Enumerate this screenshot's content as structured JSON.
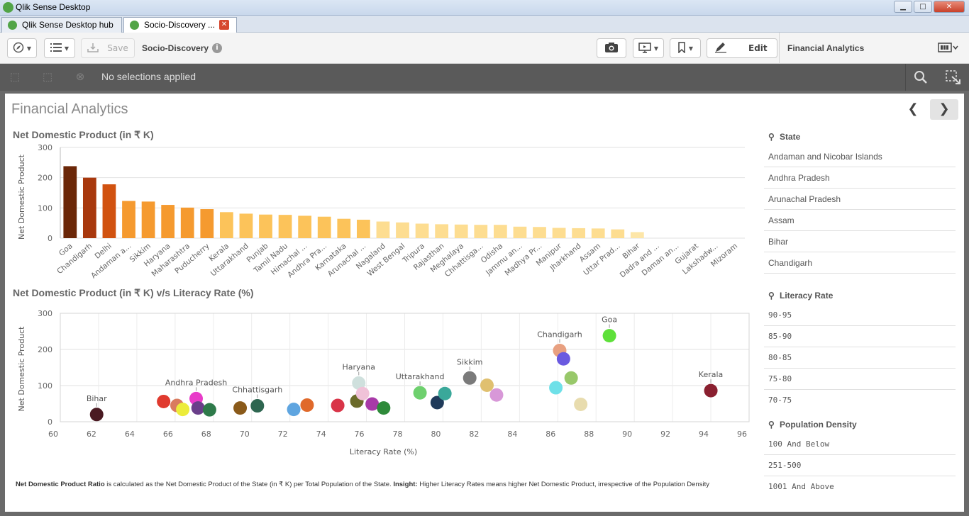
{
  "window": {
    "title": "Qlik Sense Desktop",
    "min": "▁",
    "max": "□",
    "close": "✕"
  },
  "tabs": [
    {
      "label": "Qlik Sense Desktop hub"
    },
    {
      "label": "Socio-Discovery ..."
    }
  ],
  "toolbar": {
    "save_label": "Save",
    "app_name": "Socio-Discovery",
    "edit_label": "Edit",
    "sheet_name": "Financial Analytics"
  },
  "selections": {
    "text": "No selections applied"
  },
  "sheet": {
    "title": "Financial Analytics"
  },
  "charts": {
    "bar_title": "Net Domestic Product (in ₹ K)",
    "scatter_title": "Net Domestic Product (in ₹ K) v/s Literacy Rate (%)"
  },
  "footnote": {
    "bold1": "Net Domestic Product Ratio",
    "text1": " is calculated as the Net Domestic Product of the State (in ₹ K) per Total Population of the State. ",
    "bold2": "Insight:",
    "text2": " Higher Literacy Rates means higher Net Domestic Product, irrespective of the Population Density"
  },
  "filters": {
    "state": {
      "title": "State",
      "items": [
        "Andaman and Nicobar Islands",
        "Andhra Pradesh",
        "Arunachal Pradesh",
        "Assam",
        "Bihar",
        "Chandigarh"
      ]
    },
    "literacy": {
      "title": "Literacy Rate",
      "items": [
        "90-95",
        "85-90",
        "80-85",
        "75-80",
        "70-75"
      ]
    },
    "density": {
      "title": "Population Density",
      "items": [
        "100 And Below",
        "251-500",
        "1001 And Above"
      ]
    }
  },
  "chart_data": [
    {
      "type": "bar",
      "ylabel": "Net Domestic Product",
      "ylim": [
        0,
        300
      ],
      "yticks": [
        0,
        100,
        200,
        300
      ],
      "categories": [
        "Goa",
        "Chandigarh",
        "Delhi",
        "Andaman a...",
        "Sikkim",
        "Haryana",
        "Maharashtra",
        "Puducherry",
        "Kerala",
        "Uttarakhand",
        "Punjab",
        "Tamil Nadu",
        "Himachal ...",
        "Andhra Pra...",
        "Karnataka",
        "Arunachal ...",
        "Nagaland",
        "West Bengal",
        "Tripura",
        "Rajasthan",
        "Meghalaya",
        "Chhattisga...",
        "Odisha",
        "Jammu an...",
        "Madhya Pr...",
        "Manipur",
        "Jharkhand",
        "Assam",
        "Uttar Prad...",
        "Bihar",
        "Dadra and ...",
        "Daman an...",
        "Gujarat",
        "Lakshadw...",
        "Mizoram"
      ],
      "values": [
        238,
        200,
        178,
        123,
        121,
        110,
        101,
        96,
        86,
        81,
        78,
        77,
        74,
        71,
        64,
        61,
        55,
        52,
        48,
        46,
        45,
        44,
        44,
        38,
        37,
        34,
        33,
        32,
        29,
        20,
        0,
        0,
        0,
        0,
        0
      ],
      "colors": [
        "#6b2708",
        "#a8380d",
        "#d15210",
        "#f59a2f",
        "#f59a2f",
        "#f59a2f",
        "#f59a2f",
        "#f59a2f",
        "#fcc35a",
        "#fcc35a",
        "#fcc35a",
        "#fcc35a",
        "#fcc35a",
        "#fcc35a",
        "#fcc35a",
        "#fcc35a",
        "#fddd91",
        "#fddd91",
        "#fddd91",
        "#fddd91",
        "#fddd91",
        "#fddd91",
        "#fddd91",
        "#fddd91",
        "#fddd91",
        "#fddd91",
        "#fddd91",
        "#fddd91",
        "#fddd91",
        "#fde6a8",
        "#fde6a8",
        "#fde6a8",
        "#fde6a8",
        "#fde6a8",
        "#fde6a8"
      ]
    },
    {
      "type": "scatter",
      "xlabel": "Literacy Rate (%)",
      "ylabel": "Net Domestic Product",
      "xlim": [
        60,
        96
      ],
      "ylim": [
        0,
        300
      ],
      "xticks": [
        60,
        62,
        64,
        66,
        68,
        70,
        72,
        74,
        76,
        78,
        80,
        82,
        84,
        86,
        88,
        90,
        92,
        94,
        96
      ],
      "yticks": [
        0,
        100,
        200,
        300
      ],
      "points": [
        {
          "x": 61.9,
          "y": 20,
          "color": "#4a1a22",
          "label": "Bihar"
        },
        {
          "x": 65.4,
          "y": 56,
          "color": "#e03a2e",
          "label": ""
        },
        {
          "x": 66.1,
          "y": 45,
          "color": "#d97b5f",
          "label": ""
        },
        {
          "x": 67.1,
          "y": 64,
          "color": "#e83cc9",
          "label": "Andhra Pradesh"
        },
        {
          "x": 66.4,
          "y": 34,
          "color": "#ecec3a",
          "label": ""
        },
        {
          "x": 67.2,
          "y": 38,
          "color": "#6a3f8a",
          "label": ""
        },
        {
          "x": 67.8,
          "y": 33,
          "color": "#2e7a4a",
          "label": ""
        },
        {
          "x": 69.4,
          "y": 38,
          "color": "#8a5a1a",
          "label": ""
        },
        {
          "x": 70.3,
          "y": 44,
          "color": "#2e6650",
          "label": "Chhattisgarh"
        },
        {
          "x": 72.2,
          "y": 34,
          "color": "#5fa5e0",
          "label": ""
        },
        {
          "x": 72.9,
          "y": 46,
          "color": "#e0692a",
          "label": ""
        },
        {
          "x": 74.5,
          "y": 45,
          "color": "#d93448",
          "label": ""
        },
        {
          "x": 75.5,
          "y": 57,
          "color": "#6b6b2a",
          "label": ""
        },
        {
          "x": 75.6,
          "y": 107,
          "color": "#cfe0dd",
          "label": "Haryana"
        },
        {
          "x": 75.8,
          "y": 78,
          "color": "#f0c2d8",
          "label": ""
        },
        {
          "x": 76.3,
          "y": 49,
          "color": "#a83aa8",
          "label": ""
        },
        {
          "x": 76.9,
          "y": 38,
          "color": "#2e8a3a",
          "label": ""
        },
        {
          "x": 78.8,
          "y": 80,
          "color": "#6ed06e",
          "label": "Uttarakhand"
        },
        {
          "x": 79.7,
          "y": 53,
          "color": "#1f3a5a",
          "label": ""
        },
        {
          "x": 80.1,
          "y": 78,
          "color": "#3aa89a",
          "label": ""
        },
        {
          "x": 81.4,
          "y": 121,
          "color": "#7a7a7a",
          "label": "Sikkim"
        },
        {
          "x": 82.3,
          "y": 101,
          "color": "#e0c070",
          "label": ""
        },
        {
          "x": 82.8,
          "y": 74,
          "color": "#d898d8",
          "label": ""
        },
        {
          "x": 85.9,
          "y": 94,
          "color": "#6ee0e8",
          "label": ""
        },
        {
          "x": 86.1,
          "y": 197,
          "color": "#e8a080",
          "label": "Chandigarh"
        },
        {
          "x": 86.3,
          "y": 174,
          "color": "#6a5ae0",
          "label": ""
        },
        {
          "x": 86.7,
          "y": 121,
          "color": "#98c86a",
          "label": ""
        },
        {
          "x": 87.2,
          "y": 48,
          "color": "#e8dcae",
          "label": ""
        },
        {
          "x": 88.7,
          "y": 238,
          "color": "#5ee03a",
          "label": "Goa"
        },
        {
          "x": 94.0,
          "y": 86,
          "color": "#8a2030",
          "label": "Kerala"
        }
      ]
    }
  ]
}
